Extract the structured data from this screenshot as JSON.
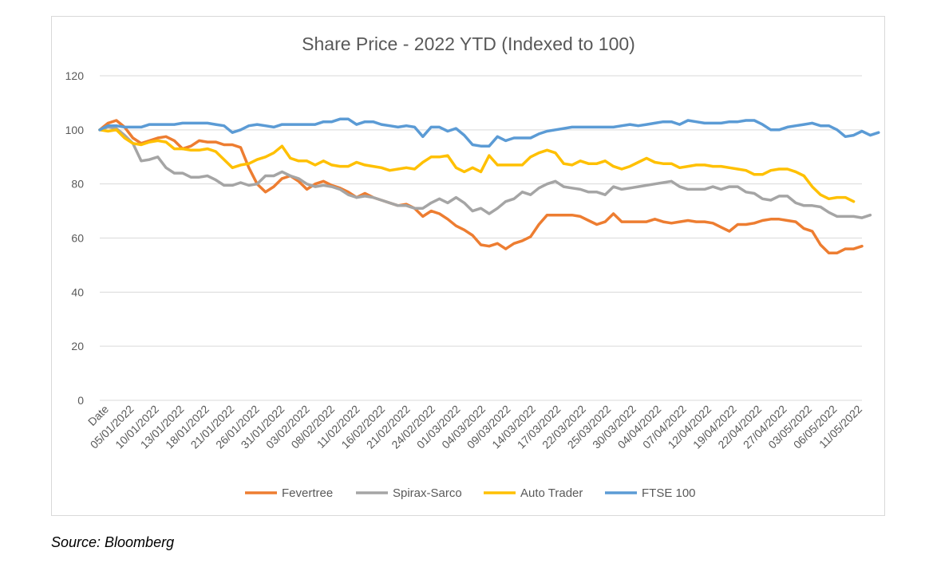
{
  "source_note": "Source: Bloomberg",
  "chart_data": {
    "type": "line",
    "title": "Share Price - 2022 YTD (Indexed to 100)",
    "xlabel": "",
    "ylabel": "",
    "ylim": [
      0,
      120
    ],
    "yticks": [
      0,
      20,
      40,
      60,
      80,
      100,
      120
    ],
    "grid": true,
    "legend_position": "bottom",
    "x_tick_labels": [
      "Date",
      "05/01/2022",
      "10/01/2022",
      "13/01/2022",
      "18/01/2022",
      "21/01/2022",
      "26/01/2022",
      "31/01/2022",
      "03/02/2022",
      "08/02/2022",
      "11/02/2022",
      "16/02/2022",
      "21/02/2022",
      "24/02/2022",
      "01/03/2022",
      "04/03/2022",
      "09/03/2022",
      "14/03/2022",
      "17/03/2022",
      "22/03/2022",
      "25/03/2022",
      "30/03/2022",
      "04/04/2022",
      "07/04/2022",
      "12/04/2022",
      "19/04/2022",
      "22/04/2022",
      "27/04/2022",
      "03/05/2022",
      "06/05/2022",
      "11/05/2022"
    ],
    "series": [
      {
        "name": "Fevertree",
        "color": "#ED7D31",
        "values": [
          100,
          102.5,
          103.5,
          101,
          97,
          95,
          96,
          97,
          97.5,
          96,
          93,
          94,
          96,
          95.5,
          95.5,
          94.5,
          94.5,
          93.5,
          86,
          80,
          77,
          79,
          82,
          83,
          81,
          78,
          80,
          81,
          79.5,
          78.5,
          77,
          75,
          76.5,
          75,
          74,
          73,
          72,
          72.5,
          71,
          68,
          70,
          69,
          67,
          64.5,
          63,
          61,
          57.5,
          57,
          58,
          56,
          58,
          59,
          60.5,
          65,
          68.5,
          68.5,
          68.5,
          68.5,
          68,
          66.5,
          65,
          66,
          69,
          66,
          66,
          66,
          66,
          67,
          66,
          65.5,
          66,
          66.5,
          66,
          66,
          65.5,
          64,
          62.5,
          65,
          65,
          65.5,
          66.5,
          67,
          67,
          66.5,
          66,
          63.5,
          62.5,
          57.5,
          54.5,
          54.5,
          56,
          56,
          57
        ]
      },
      {
        "name": "Spirax-Sarco",
        "color": "#A5A5A5",
        "values": [
          100,
          101,
          100.5,
          98,
          95,
          88.5,
          89,
          90,
          86,
          84,
          84,
          82.5,
          82.5,
          83,
          81.5,
          79.5,
          79.5,
          80.5,
          79.5,
          80,
          83,
          83,
          84.5,
          83,
          82,
          80,
          79,
          79.5,
          79,
          78,
          76,
          75,
          75.5,
          75,
          74,
          73,
          72,
          72,
          71,
          71,
          73,
          74.5,
          73,
          75,
          73,
          70,
          71,
          69,
          71,
          73.5,
          74.5,
          77,
          76,
          78.5,
          80,
          81,
          79,
          78.5,
          78,
          77,
          77,
          76,
          79,
          78,
          78.5,
          79,
          79.5,
          80,
          80.5,
          81,
          79,
          78,
          78,
          78,
          79,
          78,
          79,
          79,
          77,
          76.5,
          74.5,
          74,
          75.5,
          75.5,
          73,
          72,
          72,
          71.5,
          69.5,
          68,
          68,
          68,
          67.5,
          68.5
        ]
      },
      {
        "name": "Auto Trader",
        "color": "#FFC000",
        "values": [
          100,
          99.5,
          100,
          97,
          95,
          94.5,
          95.5,
          96,
          95.5,
          93,
          93,
          92.5,
          92.5,
          93,
          92,
          89,
          86,
          87,
          87.5,
          89,
          90,
          91.5,
          94,
          89.5,
          88.5,
          88.5,
          87,
          88.5,
          87,
          86.5,
          86.5,
          88,
          87,
          86.5,
          86,
          85,
          85.5,
          86,
          85.5,
          88,
          90,
          90,
          90.5,
          86,
          84.5,
          86,
          84.5,
          90.5,
          87,
          87,
          87,
          87,
          90,
          91.5,
          92.5,
          91.5,
          87.5,
          87,
          88.5,
          87.5,
          87.5,
          88.5,
          86.5,
          85.5,
          86.5,
          88,
          89.5,
          88,
          87.5,
          87.5,
          86,
          86.5,
          87,
          87,
          86.5,
          86.5,
          86,
          85.5,
          85,
          83.5,
          83.5,
          85,
          85.5,
          85.5,
          84.5,
          83,
          79,
          76,
          74.5,
          75,
          75,
          73.5
        ]
      },
      {
        "name": "FTSE 100",
        "color": "#5B9BD5",
        "values": [
          100,
          101.5,
          101.5,
          101,
          101,
          101,
          102,
          102,
          102,
          102,
          102.5,
          102.5,
          102.5,
          102.5,
          102,
          101.5,
          99,
          100,
          101.5,
          102,
          101.5,
          101,
          102,
          102,
          102,
          102,
          102,
          103,
          103,
          104,
          104,
          102,
          103,
          103,
          102,
          101.5,
          101,
          101.5,
          101,
          97.5,
          101,
          101,
          99.5,
          100.5,
          98,
          94.5,
          94,
          94,
          97.5,
          96,
          97,
          97,
          97,
          98.5,
          99.5,
          100,
          100.5,
          101,
          101,
          101,
          101,
          101,
          101,
          101.5,
          102,
          101.5,
          102,
          102.5,
          103,
          103,
          102,
          103.5,
          103,
          102.5,
          102.5,
          102.5,
          103,
          103,
          103.5,
          103.5,
          102,
          100,
          100,
          101,
          101.5,
          102,
          102.5,
          101.5,
          101.5,
          100,
          97.5,
          98,
          99.5,
          98,
          99
        ]
      }
    ]
  }
}
